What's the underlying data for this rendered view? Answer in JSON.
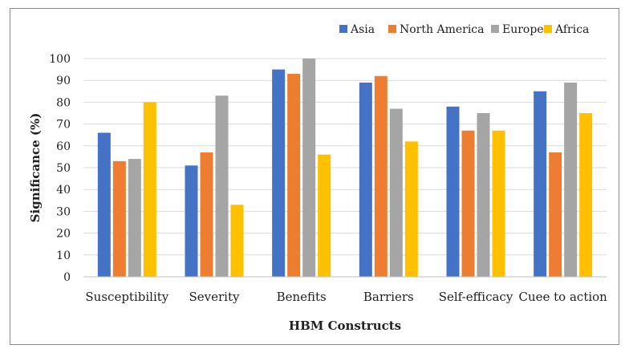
{
  "chart_data": {
    "type": "bar",
    "title": "",
    "xlabel": "HBM Constructs",
    "ylabel": "Significance (%)",
    "ylim": [
      0,
      100
    ],
    "yticks": [
      0,
      10,
      20,
      30,
      40,
      50,
      60,
      70,
      80,
      90,
      100
    ],
    "grid": true,
    "legend_position": "top-right",
    "categories": [
      "Susceptibility",
      "Severity",
      "Benefits",
      "Barriers",
      "Self-efficacy",
      "Cuee to action"
    ],
    "series": [
      {
        "name": "Asia",
        "color": "#4472c4",
        "values": [
          66,
          51,
          95,
          89,
          78,
          85
        ]
      },
      {
        "name": "North America",
        "color": "#ed7d31",
        "values": [
          53,
          57,
          93,
          92,
          67,
          57
        ]
      },
      {
        "name": "Europe",
        "color": "#a5a5a5",
        "values": [
          54,
          83,
          100,
          77,
          75,
          89
        ]
      },
      {
        "name": "Africa",
        "color": "#ffc000",
        "values": [
          80,
          33,
          56,
          62,
          67,
          75
        ]
      }
    ]
  }
}
